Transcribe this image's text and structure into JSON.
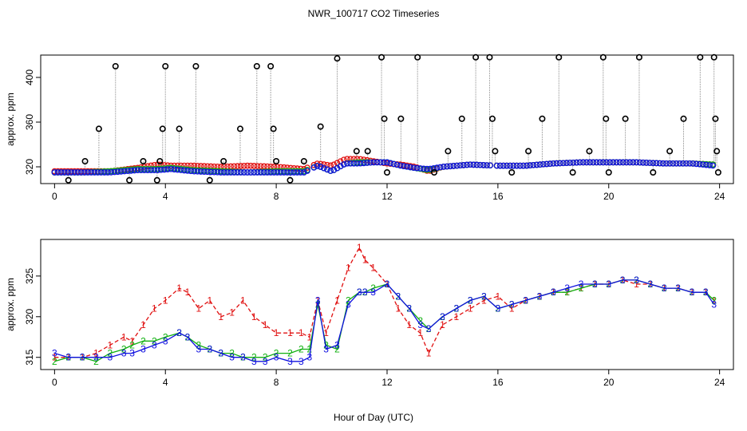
{
  "figure": {
    "title": "NWR_100717  CO2 Timeseries",
    "xlabel": "Hour of Day (UTC)"
  },
  "colors": {
    "line_1": "#e01010",
    "line_2": "#10b010",
    "line_3": "#1010e0",
    "point_cyan": "#00c8c8",
    "flask_point": "#000000",
    "gray_line": "#aaaaaa",
    "axes": "#000000"
  },
  "chart_data": [
    {
      "type": "scatter",
      "title": "NWR_100717  CO2 Timeseries",
      "xlabel": "",
      "ylabel": "approx. ppm",
      "xlim": [
        -0.5,
        24.5
      ],
      "ylim": [
        305,
        420
      ],
      "xticks": [
        0,
        4,
        8,
        12,
        16,
        20,
        24
      ],
      "yticks": [
        320,
        360,
        400
      ],
      "grid": false,
      "continuous_series": [
        {
          "name": "red",
          "color": "#e01010",
          "x": [
            0,
            1,
            2,
            3,
            3.7,
            4.2,
            5,
            6,
            7,
            8,
            8.5,
            9,
            9.5,
            10,
            10.5,
            11,
            11.5,
            12,
            12.5,
            13,
            13.5,
            14,
            15,
            16,
            17,
            18,
            19,
            20,
            21,
            22,
            23,
            23.8
          ],
          "y": [
            316,
            316,
            316,
            319,
            322,
            321,
            321,
            320,
            321,
            320,
            319,
            318,
            323,
            321,
            327,
            327,
            325,
            323,
            322,
            320,
            316,
            320,
            322,
            321,
            321,
            323,
            324,
            324,
            324,
            323,
            323,
            322
          ]
        },
        {
          "name": "green",
          "color": "#10b010",
          "x": [
            0,
            1,
            2,
            3,
            3.7,
            4.2,
            5,
            6,
            7,
            8,
            8.5,
            9,
            9.5,
            10,
            10.5,
            11,
            11.5,
            12,
            12.5,
            13,
            13.5,
            14,
            15,
            16,
            17,
            18,
            19,
            20,
            21,
            22,
            23,
            23.8
          ],
          "y": [
            315,
            315,
            316,
            318,
            318,
            319,
            317,
            316,
            315,
            316,
            316,
            316,
            321,
            316,
            323,
            324,
            324,
            324,
            321,
            319,
            317,
            320,
            322,
            321,
            321,
            323,
            324,
            324,
            324,
            323,
            323,
            322
          ]
        },
        {
          "name": "blue",
          "color": "#1010e0",
          "x": [
            0,
            1,
            2,
            3,
            3.7,
            4.2,
            5,
            6,
            7,
            8,
            8.5,
            9,
            9.5,
            10,
            10.5,
            11,
            11.5,
            12,
            12.5,
            13,
            13.5,
            14,
            15,
            16,
            17,
            18,
            19,
            20,
            21,
            22,
            23,
            23.8
          ],
          "y": [
            315,
            315,
            315,
            317,
            317,
            318,
            316,
            315,
            315,
            315,
            315,
            315,
            321,
            316,
            323,
            323,
            324,
            324,
            321,
            319,
            318,
            320,
            322,
            321,
            321,
            323,
            324,
            324,
            324,
            323,
            323,
            321
          ]
        }
      ],
      "point_series": {
        "name": "flask",
        "color": "#000000",
        "x": [
          0.5,
          1.1,
          1.6,
          2.2,
          2.7,
          3.2,
          3.7,
          3.8,
          3.9,
          4.0,
          4.5,
          5.1,
          5.6,
          6.1,
          6.7,
          7.3,
          7.8,
          7.9,
          8.0,
          8.5,
          9.0,
          9.6,
          10.2,
          10.9,
          11.3,
          11.8,
          11.9,
          12.0,
          12.5,
          13.1,
          13.7,
          14.2,
          14.7,
          15.2,
          15.7,
          15.8,
          15.9,
          16.5,
          17.1,
          17.6,
          18.2,
          18.7,
          19.3,
          19.8,
          19.9,
          20.0,
          20.6,
          21.1,
          21.6,
          22.2,
          22.7,
          23.3,
          23.8,
          23.85,
          23.9,
          23.95
        ],
        "y": [
          308,
          325,
          354,
          410,
          308,
          325,
          308,
          325,
          354,
          410,
          354,
          410,
          308,
          325,
          354,
          410,
          410,
          354,
          325,
          308,
          325,
          356,
          417,
          334,
          334,
          418,
          363,
          315,
          363,
          418,
          315,
          334,
          363,
          418,
          418,
          363,
          334,
          315,
          334,
          363,
          418,
          315,
          334,
          418,
          363,
          315,
          363,
          418,
          315,
          334,
          363,
          418,
          418,
          363,
          334,
          315
        ]
      }
    },
    {
      "type": "line",
      "title": "",
      "xlabel": "",
      "ylabel": "approx. ppm",
      "xlim": [
        -0.5,
        24.5
      ],
      "ylim": [
        313.5,
        329.5
      ],
      "xticks": [
        0,
        4,
        8,
        12,
        16,
        20,
        24
      ],
      "yticks": [
        315,
        320,
        325
      ],
      "grid": false,
      "series": [
        {
          "name": "1",
          "marker": "1",
          "color": "#e01010",
          "x": [
            0,
            0.5,
            1,
            1.5,
            2,
            2.5,
            2.8,
            3.2,
            3.6,
            4,
            4.5,
            4.8,
            5.2,
            5.6,
            6,
            6.4,
            6.8,
            7.2,
            7.6,
            8,
            8.5,
            8.9,
            9.2,
            9.5,
            9.8,
            10.2,
            10.6,
            11,
            11.2,
            11.5,
            12,
            12.4,
            12.8,
            13.2,
            13.5,
            14,
            14.5,
            15,
            15.5,
            16,
            16.5,
            17,
            17.5,
            18,
            18.5,
            19,
            19.5,
            20,
            20.5,
            21,
            21.5,
            22,
            22.5,
            23,
            23.5,
            23.8
          ],
          "y": [
            315,
            315,
            315,
            315.5,
            316.5,
            317.5,
            317,
            319,
            321,
            322,
            323.5,
            323,
            321,
            322,
            320,
            320.5,
            322,
            320,
            319,
            318,
            318,
            318,
            317.5,
            322,
            318,
            322,
            326,
            328.5,
            327,
            326,
            324,
            321,
            319,
            318,
            315.5,
            319,
            320,
            321,
            322,
            322.5,
            321,
            322,
            322.5,
            323,
            323,
            323.5,
            324,
            324,
            324.5,
            324,
            324,
            323.5,
            323.5,
            323,
            323,
            322
          ]
        },
        {
          "name": "2",
          "marker": "2",
          "color": "#10b010",
          "x": [
            0,
            0.5,
            1,
            1.5,
            2,
            2.5,
            2.8,
            3.2,
            3.6,
            4,
            4.5,
            4.8,
            5.2,
            5.6,
            6,
            6.4,
            6.8,
            7.2,
            7.6,
            8,
            8.5,
            8.9,
            9.2,
            9.5,
            9.8,
            10.2,
            10.6,
            11,
            11.2,
            11.5,
            12,
            12.4,
            12.8,
            13.2,
            13.5,
            14,
            14.5,
            15,
            15.5,
            16,
            16.5,
            17,
            17.5,
            18,
            18.5,
            19,
            19.5,
            20,
            20.5,
            21,
            21.5,
            22,
            22.5,
            23,
            23.5,
            23.8
          ],
          "y": [
            314.5,
            315,
            315,
            314.5,
            315.5,
            316,
            316.5,
            317,
            317,
            317.5,
            318,
            317.5,
            316.5,
            316,
            315.5,
            315.5,
            315,
            315,
            315,
            315.5,
            315.5,
            316,
            316,
            321.5,
            316.5,
            316,
            322,
            323,
            323,
            323.5,
            324,
            322.5,
            321,
            319.5,
            318.5,
            320,
            321,
            322,
            322.5,
            321,
            321.5,
            322,
            322.5,
            323,
            323,
            323.5,
            324,
            324,
            324.5,
            324.5,
            324,
            323.5,
            323.5,
            323,
            323,
            322
          ]
        },
        {
          "name": "3",
          "marker": "3",
          "color": "#1010e0",
          "x": [
            0,
            0.5,
            1,
            1.5,
            2,
            2.5,
            2.8,
            3.2,
            3.6,
            4,
            4.5,
            4.8,
            5.2,
            5.6,
            6,
            6.4,
            6.8,
            7.2,
            7.6,
            8,
            8.5,
            8.9,
            9.2,
            9.5,
            9.8,
            10.2,
            10.6,
            11,
            11.2,
            11.5,
            12,
            12.4,
            12.8,
            13.2,
            13.5,
            14,
            14.5,
            15,
            15.5,
            16,
            16.5,
            17,
            17.5,
            18,
            18.5,
            19,
            19.5,
            20,
            20.5,
            21,
            21.5,
            22,
            22.5,
            23,
            23.5,
            23.8
          ],
          "y": [
            315.5,
            315,
            315,
            315,
            315,
            315.5,
            315.5,
            316,
            316.5,
            317,
            318,
            317.5,
            316,
            316,
            315.5,
            315,
            315,
            314.5,
            314.5,
            315,
            314.5,
            314.5,
            315,
            322,
            316,
            316.5,
            321.5,
            323,
            323,
            323,
            324,
            322.5,
            321,
            319,
            318.5,
            320,
            321,
            322,
            322.5,
            321,
            321.5,
            322,
            322.5,
            323,
            323.5,
            324,
            324,
            324,
            324.5,
            324.5,
            324,
            323.5,
            323.5,
            323,
            323,
            321.5
          ]
        }
      ]
    }
  ]
}
